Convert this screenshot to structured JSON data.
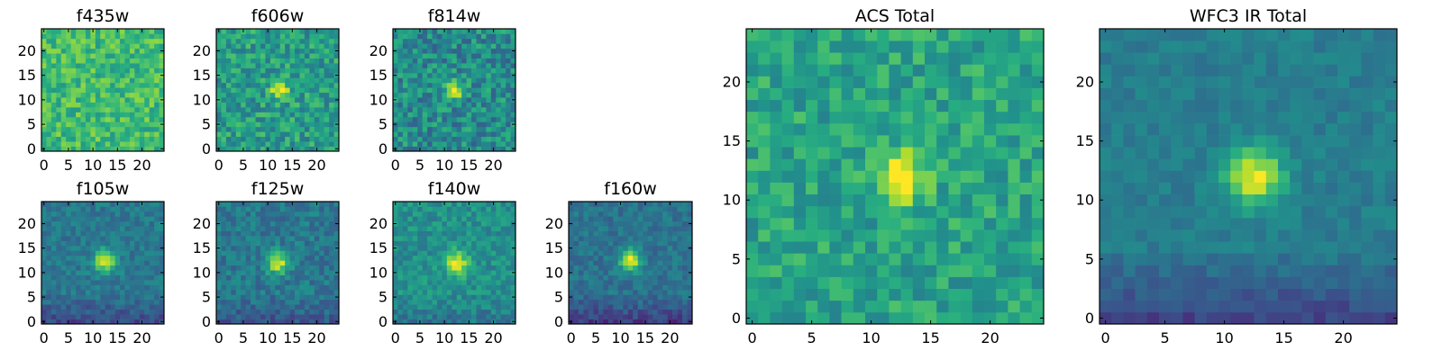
{
  "figure": {
    "background": "#ffffff"
  },
  "colormap": {
    "name": "viridis",
    "stops": [
      "#440154",
      "#472d7b",
      "#3b528b",
      "#2c728e",
      "#21918c",
      "#28ae80",
      "#5ec962",
      "#addc30",
      "#fde725"
    ]
  },
  "chart_data": [
    {
      "id": "f435w",
      "type": "heatmap",
      "title": "f435w",
      "size": 25,
      "xlim": [
        0,
        24
      ],
      "ylim": [
        0,
        24
      ],
      "xticks": [
        0,
        5,
        10,
        15,
        20
      ],
      "yticks": [
        0,
        5,
        10,
        15,
        20
      ],
      "source_center": [
        12,
        12
      ],
      "peak": 0.0,
      "width": 2.0,
      "bg": 0.68,
      "noise": 0.15,
      "edge_dark": 0.0,
      "seed": 11
    },
    {
      "id": "f606w",
      "type": "heatmap",
      "title": "f606w",
      "size": 25,
      "xlim": [
        0,
        24
      ],
      "ylim": [
        0,
        24
      ],
      "xticks": [
        0,
        5,
        10,
        15,
        20
      ],
      "yticks": [
        0,
        5,
        10,
        15,
        20
      ],
      "source_center": [
        12.5,
        12
      ],
      "peak": 0.45,
      "width": 1.3,
      "bg": 0.55,
      "noise": 0.17,
      "edge_dark": 0.0,
      "seed": 23
    },
    {
      "id": "f814w",
      "type": "heatmap",
      "title": "f814w",
      "size": 25,
      "xlim": [
        0,
        24
      ],
      "ylim": [
        0,
        24
      ],
      "xticks": [
        0,
        5,
        10,
        15,
        20
      ],
      "yticks": [
        0,
        5,
        10,
        15,
        20
      ],
      "source_center": [
        12,
        12
      ],
      "peak": 0.5,
      "width": 1.3,
      "bg": 0.48,
      "noise": 0.18,
      "edge_dark": 0.0,
      "seed": 37
    },
    {
      "id": "f105w",
      "type": "heatmap",
      "title": "f105w",
      "size": 25,
      "xlim": [
        0,
        24
      ],
      "ylim": [
        0,
        24
      ],
      "xticks": [
        0,
        5,
        10,
        15,
        20
      ],
      "yticks": [
        0,
        5,
        10,
        15,
        20
      ],
      "source_center": [
        12.5,
        12.5
      ],
      "peak": 0.55,
      "width": 1.6,
      "bg": 0.4,
      "noise": 0.09,
      "edge_dark": 0.18,
      "seed": 41
    },
    {
      "id": "f125w",
      "type": "heatmap",
      "title": "f125w",
      "size": 25,
      "xlim": [
        0,
        24
      ],
      "ylim": [
        0,
        24
      ],
      "xticks": [
        0,
        5,
        10,
        15,
        20
      ],
      "yticks": [
        0,
        5,
        10,
        15,
        20
      ],
      "source_center": [
        12,
        12
      ],
      "peak": 0.55,
      "width": 1.5,
      "bg": 0.4,
      "noise": 0.11,
      "edge_dark": 0.12,
      "seed": 53
    },
    {
      "id": "f140w",
      "type": "heatmap",
      "title": "f140w",
      "size": 25,
      "xlim": [
        0,
        24
      ],
      "ylim": [
        0,
        24
      ],
      "xticks": [
        0,
        5,
        10,
        15,
        20
      ],
      "yticks": [
        0,
        5,
        10,
        15,
        20
      ],
      "source_center": [
        12.5,
        12
      ],
      "peak": 0.45,
      "width": 1.7,
      "bg": 0.5,
      "noise": 0.11,
      "edge_dark": 0.1,
      "seed": 67
    },
    {
      "id": "f160w",
      "type": "heatmap",
      "title": "f160w",
      "size": 25,
      "xlim": [
        0,
        24
      ],
      "ylim": [
        0,
        24
      ],
      "xticks": [
        0,
        5,
        10,
        15,
        20
      ],
      "yticks": [
        0,
        5,
        10,
        15,
        20
      ],
      "source_center": [
        12,
        12.5
      ],
      "peak": 0.6,
      "width": 1.5,
      "bg": 0.38,
      "noise": 0.09,
      "edge_dark": 0.2,
      "seed": 79
    },
    {
      "id": "acs-total",
      "type": "heatmap",
      "title": "ACS Total",
      "size": 25,
      "xlim": [
        0,
        24
      ],
      "ylim": [
        0,
        24
      ],
      "xticks": [
        0,
        5,
        10,
        15,
        20
      ],
      "yticks": [
        0,
        5,
        10,
        15,
        20
      ],
      "source_center": [
        12.5,
        12
      ],
      "peak": 0.55,
      "width": 1.4,
      "bg": 0.58,
      "noise": 0.14,
      "edge_dark": 0.0,
      "seed": 91
    },
    {
      "id": "wfc3-ir-total",
      "type": "heatmap",
      "title": "WFC3 IR Total",
      "size": 25,
      "xlim": [
        0,
        24
      ],
      "ylim": [
        0,
        24
      ],
      "xticks": [
        0,
        5,
        10,
        15,
        20
      ],
      "yticks": [
        0,
        5,
        10,
        15,
        20
      ],
      "source_center": [
        12.5,
        12
      ],
      "peak": 0.55,
      "width": 1.7,
      "bg": 0.42,
      "noise": 0.06,
      "edge_dark": 0.22,
      "seed": 103
    }
  ]
}
